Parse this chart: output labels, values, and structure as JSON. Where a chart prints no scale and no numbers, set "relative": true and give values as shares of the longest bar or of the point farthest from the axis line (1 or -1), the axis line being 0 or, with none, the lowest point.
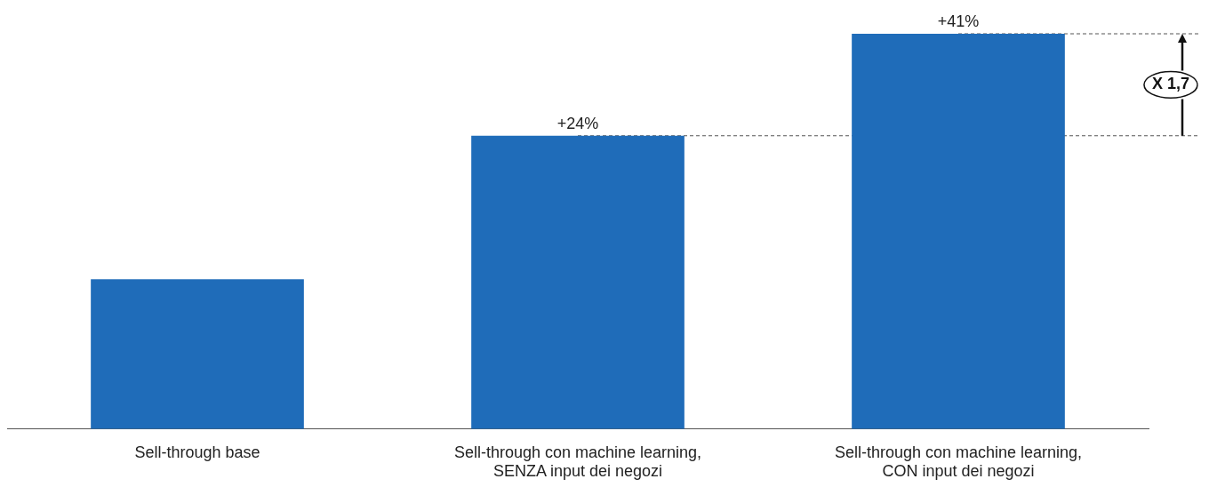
{
  "chart_data": {
    "type": "bar",
    "relative": true,
    "categories": [
      "Sell-through base",
      "Sell-through con machine learning, SENZA input dei negozi",
      "Sell-through con machine learning, CON input dei negozi"
    ],
    "values": [
      0.379,
      0.742,
      1
    ],
    "color": "#1f6cb9",
    "annotations": [
      {
        "text": "+24%",
        "x": "Sell-through con machine learning, SENZA input dei negozi",
        "y": 0.742
      },
      {
        "text": "+41%",
        "x": "Sell-through con machine learning, CON input dei negozi",
        "y": 1
      },
      "X 1,7"
    ],
    "ref_lines": [
      {
        "axis": "y",
        "value": 0.742,
        "color": "#555555",
        "line_style": "dashed"
      },
      {
        "axis": "y",
        "value": 1,
        "color": "#555555",
        "line_style": "dashed"
      }
    ],
    "grid": false,
    "legend": false
  }
}
